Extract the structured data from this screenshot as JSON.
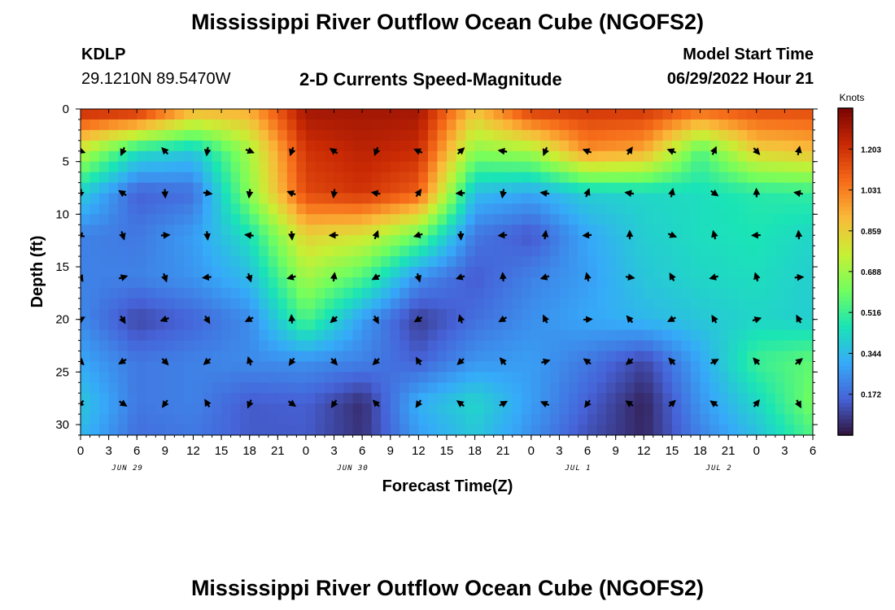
{
  "title": "Mississippi River Outflow Ocean Cube (NGOFS2)",
  "title_repeat": "Mississippi River Outflow Ocean Cube (NGOFS2)",
  "station": {
    "id": "KDLP",
    "coords": "29.1210N  89.5470W"
  },
  "chart_title": "2-D Currents Speed-Magnitude",
  "model_start": {
    "label": "Model Start Time",
    "value": "06/29/2022 Hour 21"
  },
  "colors": {
    "ramp": [
      "#30123b",
      "#4662d7",
      "#36aaf9",
      "#1ae4b6",
      "#72fe5e",
      "#c8ef34",
      "#faba39",
      "#f66b19",
      "#ca2a04",
      "#7a0403"
    ],
    "arrow": "#000000"
  },
  "chart_data": {
    "type": "heatmap",
    "xlabel": "Forecast Time(Z)",
    "ylabel": "Depth (ft)",
    "x_tick_labels": [
      "0",
      "3",
      "6",
      "9",
      "12",
      "15",
      "18",
      "21",
      "0",
      "3",
      "6",
      "9",
      "12",
      "15",
      "18",
      "21",
      "0",
      "3",
      "6",
      "9",
      "12",
      "15",
      "18",
      "21",
      "0",
      "3",
      "6"
    ],
    "x_day_labels": [
      {
        "label": "JUN 29",
        "at_hour": 5
      },
      {
        "label": "JUN 30",
        "at_hour": 29
      },
      {
        "label": "JUL 1",
        "at_hour": 53
      },
      {
        "label": "JUL 2",
        "at_hour": 68
      }
    ],
    "x_range_hours": [
      0,
      78
    ],
    "y_range_ft": [
      0,
      31
    ],
    "y_ticks": [
      0,
      5,
      10,
      15,
      20,
      25,
      30
    ],
    "y_tick_labels": [
      "0",
      "5",
      "10",
      "15",
      "20",
      "25",
      "30"
    ],
    "colorbar": {
      "label": "Knots",
      "range": [
        0,
        1.375
      ],
      "ticks": [
        "1.203",
        "1.031",
        "0.859",
        "0.688",
        "0.516",
        "0.344",
        "0.172"
      ],
      "tick_values": [
        1.203,
        1.031,
        0.859,
        0.688,
        0.516,
        0.344,
        0.172
      ]
    },
    "speed_grid_knots": {
      "hours": [
        0,
        6,
        12,
        18,
        24,
        30,
        36,
        42,
        48,
        54,
        60,
        66,
        72,
        78
      ],
      "depths_ft": [
        0,
        4,
        8,
        12,
        16,
        20,
        24,
        28,
        31
      ],
      "values": [
        [
          1.25,
          1.25,
          0.95,
          0.95,
          1.3,
          1.3,
          1.3,
          0.9,
          1.2,
          1.2,
          1.2,
          1.1,
          1.15,
          1.15
        ],
        [
          0.75,
          0.45,
          0.38,
          0.7,
          1.2,
          1.25,
          1.22,
          0.65,
          0.7,
          1.0,
          0.95,
          0.55,
          0.85,
          0.9
        ],
        [
          0.4,
          0.15,
          0.18,
          0.65,
          1.15,
          1.2,
          1.1,
          0.35,
          0.3,
          0.4,
          0.42,
          0.44,
          0.48,
          0.5
        ],
        [
          0.22,
          0.2,
          0.28,
          0.45,
          0.85,
          0.8,
          0.6,
          0.2,
          0.13,
          0.3,
          0.4,
          0.44,
          0.46,
          0.42
        ],
        [
          0.22,
          0.22,
          0.26,
          0.35,
          0.7,
          0.55,
          0.25,
          0.14,
          0.22,
          0.28,
          0.38,
          0.42,
          0.44,
          0.4
        ],
        [
          0.24,
          0.1,
          0.16,
          0.24,
          0.55,
          0.28,
          0.08,
          0.18,
          0.25,
          0.3,
          0.34,
          0.38,
          0.42,
          0.4
        ],
        [
          0.3,
          0.2,
          0.22,
          0.24,
          0.25,
          0.22,
          0.15,
          0.26,
          0.28,
          0.2,
          0.1,
          0.3,
          0.52,
          0.58
        ],
        [
          0.38,
          0.2,
          0.22,
          0.14,
          0.15,
          0.05,
          0.32,
          0.42,
          0.28,
          0.15,
          0.03,
          0.26,
          0.42,
          0.62
        ],
        [
          0.34,
          0.18,
          0.2,
          0.14,
          0.14,
          0.06,
          0.28,
          0.38,
          0.25,
          0.12,
          0.04,
          0.22,
          0.36,
          0.55
        ]
      ]
    }
  }
}
